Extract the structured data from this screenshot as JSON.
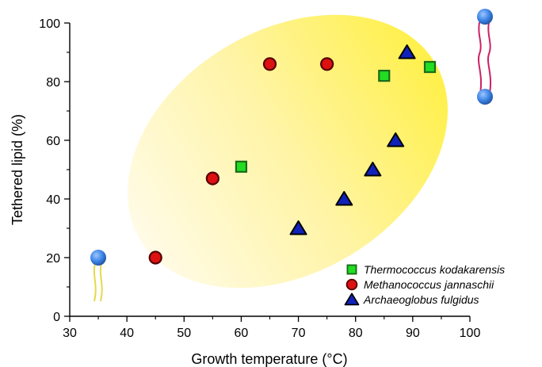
{
  "chart_data": {
    "type": "scatter",
    "xlabel": "Growth temperature (°C)",
    "ylabel": "Tethered lipid (%)",
    "xlim": [
      30,
      100
    ],
    "ylim": [
      0,
      100
    ],
    "x_ticks": [
      30,
      40,
      50,
      60,
      70,
      80,
      90,
      100
    ],
    "y_ticks": [
      0,
      20,
      40,
      60,
      80,
      100
    ],
    "legend_position": "bottom-right",
    "series": [
      {
        "name": "Thermococcus kodakarensis",
        "marker": "square",
        "color": "#22dd22",
        "edge": "#1a6b1a",
        "points": [
          [
            60,
            51
          ],
          [
            85,
            82
          ],
          [
            93,
            85
          ]
        ]
      },
      {
        "name": "Methanococcus jannaschii",
        "marker": "circle",
        "color": "#dd1111",
        "edge": "#550000",
        "points": [
          [
            45,
            20
          ],
          [
            55,
            47
          ],
          [
            65,
            86
          ],
          [
            75,
            86
          ]
        ]
      },
      {
        "name": "Archaeoglobus fulgidus",
        "marker": "triangle",
        "color": "#1122bb",
        "edge": "#000000",
        "points": [
          [
            70,
            30
          ],
          [
            78,
            40
          ],
          [
            83,
            50
          ],
          [
            87,
            60
          ],
          [
            89,
            90
          ]
        ]
      }
    ],
    "highlight_color": "#fff066"
  }
}
